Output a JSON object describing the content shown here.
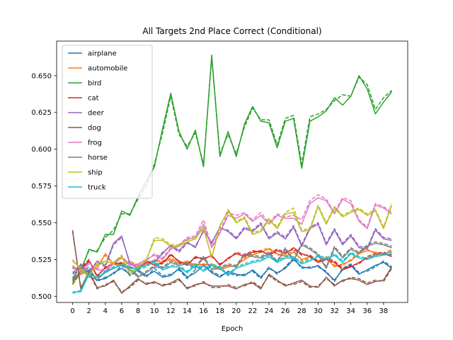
{
  "chart_data": {
    "type": "line",
    "title": "All Targets 2nd Place Correct (Conditional)",
    "xlabel": "Epoch",
    "ylabel": "",
    "xlim": [
      -1.95,
      40.95
    ],
    "ylim": [
      0.4958,
      0.6735
    ],
    "xticks": [
      0,
      2,
      4,
      6,
      8,
      10,
      12,
      14,
      16,
      18,
      20,
      22,
      24,
      26,
      28,
      30,
      32,
      34,
      36,
      38
    ],
    "yticks": [
      0.5,
      0.525,
      0.55,
      0.575,
      0.6,
      0.625,
      0.65
    ],
    "ytick_labels": [
      "0.500",
      "0.525",
      "0.550",
      "0.575",
      "0.600",
      "0.625",
      "0.650"
    ],
    "legend_position": "top-left",
    "line_styles": {
      "solid": "solid",
      "dashed": "dashed"
    },
    "x": [
      0,
      1,
      2,
      3,
      4,
      5,
      6,
      7,
      8,
      9,
      10,
      11,
      12,
      13,
      14,
      15,
      16,
      17,
      18,
      19,
      20,
      21,
      22,
      23,
      24,
      25,
      26,
      27,
      28,
      29,
      30,
      31,
      32,
      33,
      34,
      35,
      36,
      37,
      38,
      39
    ],
    "series": [
      {
        "name": "airplane",
        "color": "#1f77b4",
        "values": [
          0.513,
          0.515,
          0.518,
          0.511,
          0.512,
          0.516,
          0.519,
          0.515,
          0.518,
          0.514,
          0.517,
          0.513,
          0.514,
          0.519,
          0.513,
          0.516,
          0.521,
          0.516,
          0.513,
          0.517,
          0.515,
          0.514,
          0.518,
          0.513,
          0.519,
          0.516,
          0.519,
          0.525,
          0.52,
          0.519,
          0.521,
          0.516,
          0.511,
          0.518,
          0.521,
          0.515,
          0.518,
          0.521,
          0.523,
          0.519
        ],
        "values_2": [
          0.511,
          0.516,
          0.52,
          0.51,
          0.513,
          0.515,
          0.521,
          0.514,
          0.517,
          0.513,
          0.519,
          0.514,
          0.515,
          0.518,
          0.512,
          0.518,
          0.522,
          0.517,
          0.514,
          0.516,
          0.514,
          0.515,
          0.517,
          0.512,
          0.52,
          0.515,
          0.52,
          0.526,
          0.519,
          0.52,
          0.52,
          0.517,
          0.51,
          0.519,
          0.522,
          0.516,
          0.517,
          0.52,
          0.524,
          0.52
        ]
      },
      {
        "name": "automobile",
        "color": "#ff7f0e",
        "values": [
          0.509,
          0.515,
          0.517,
          0.519,
          0.529,
          0.522,
          0.521,
          0.523,
          0.52,
          0.522,
          0.524,
          0.523,
          0.525,
          0.522,
          0.524,
          0.521,
          0.522,
          0.521,
          0.518,
          0.52,
          0.521,
          0.525,
          0.528,
          0.53,
          0.532,
          0.529,
          0.527,
          0.53,
          0.525,
          0.527,
          0.523,
          0.526,
          0.52,
          0.522,
          0.524,
          0.529,
          0.531,
          0.53,
          0.528,
          0.531
        ],
        "values_2": [
          0.508,
          0.516,
          0.516,
          0.52,
          0.528,
          0.521,
          0.522,
          0.524,
          0.521,
          0.521,
          0.525,
          0.524,
          0.526,
          0.523,
          0.523,
          0.522,
          0.521,
          0.522,
          0.519,
          0.521,
          0.52,
          0.526,
          0.529,
          0.531,
          0.533,
          0.528,
          0.528,
          0.531,
          0.524,
          0.526,
          0.524,
          0.527,
          0.521,
          0.521,
          0.525,
          0.53,
          0.532,
          0.529,
          0.529,
          0.532
        ]
      },
      {
        "name": "bird",
        "color": "#2ca02c",
        "values": [
          0.51,
          0.517,
          0.532,
          0.53,
          0.542,
          0.542,
          0.558,
          0.555,
          0.568,
          0.578,
          0.588,
          0.614,
          0.638,
          0.612,
          0.6,
          0.613,
          0.588,
          0.664,
          0.595,
          0.612,
          0.595,
          0.617,
          0.629,
          0.619,
          0.618,
          0.601,
          0.619,
          0.621,
          0.587,
          0.619,
          0.622,
          0.626,
          0.635,
          0.63,
          0.636,
          0.65,
          0.641,
          0.624,
          0.632,
          0.639
        ],
        "values_2": [
          0.508,
          0.518,
          0.531,
          0.531,
          0.54,
          0.545,
          0.556,
          0.556,
          0.566,
          0.575,
          0.59,
          0.611,
          0.636,
          0.61,
          0.602,
          0.611,
          0.59,
          0.662,
          0.597,
          0.61,
          0.597,
          0.615,
          0.628,
          0.62,
          0.62,
          0.603,
          0.621,
          0.623,
          0.59,
          0.622,
          0.624,
          0.627,
          0.633,
          0.637,
          0.636,
          0.649,
          0.644,
          0.627,
          0.635,
          0.64
        ]
      },
      {
        "name": "cat",
        "color": "#d62728",
        "values": [
          0.52,
          0.518,
          0.524,
          0.514,
          0.519,
          0.523,
          0.522,
          0.52,
          0.518,
          0.524,
          0.521,
          0.523,
          0.528,
          0.524,
          0.521,
          0.527,
          0.525,
          0.528,
          0.521,
          0.526,
          0.529,
          0.527,
          0.53,
          0.531,
          0.528,
          0.531,
          0.529,
          0.533,
          0.529,
          0.527,
          0.523,
          0.525,
          0.523,
          0.518,
          0.52,
          0.523,
          0.526,
          0.528,
          0.529,
          0.527
        ],
        "values_2": [
          0.519,
          0.519,
          0.525,
          0.513,
          0.52,
          0.522,
          0.523,
          0.519,
          0.519,
          0.523,
          0.522,
          0.522,
          0.529,
          0.523,
          0.522,
          0.526,
          0.526,
          0.527,
          0.522,
          0.525,
          0.53,
          0.528,
          0.531,
          0.53,
          0.529,
          0.532,
          0.53,
          0.532,
          0.528,
          0.528,
          0.524,
          0.526,
          0.524,
          0.519,
          0.521,
          0.522,
          0.527,
          0.529,
          0.53,
          0.528
        ]
      },
      {
        "name": "deer",
        "color": "#9467bd",
        "values": [
          0.512,
          0.522,
          0.516,
          0.524,
          0.521,
          0.536,
          0.541,
          0.522,
          0.519,
          0.524,
          0.523,
          0.529,
          0.535,
          0.531,
          0.537,
          0.533,
          0.545,
          0.536,
          0.547,
          0.544,
          0.539,
          0.546,
          0.544,
          0.549,
          0.539,
          0.543,
          0.539,
          0.547,
          0.534,
          0.546,
          0.549,
          0.535,
          0.545,
          0.535,
          0.541,
          0.533,
          0.532,
          0.545,
          0.539,
          0.538
        ],
        "values_2": [
          0.511,
          0.521,
          0.517,
          0.523,
          0.52,
          0.535,
          0.54,
          0.523,
          0.52,
          0.523,
          0.524,
          0.53,
          0.534,
          0.53,
          0.536,
          0.534,
          0.544,
          0.537,
          0.546,
          0.545,
          0.54,
          0.547,
          0.545,
          0.55,
          0.54,
          0.544,
          0.54,
          0.548,
          0.535,
          0.547,
          0.55,
          0.536,
          0.546,
          0.536,
          0.542,
          0.534,
          0.533,
          0.546,
          0.54,
          0.539
        ]
      },
      {
        "name": "dog",
        "color": "#8c564b",
        "values": [
          0.545,
          0.505,
          0.517,
          0.506,
          0.507,
          0.511,
          0.502,
          0.507,
          0.512,
          0.508,
          0.51,
          0.507,
          0.509,
          0.512,
          0.505,
          0.508,
          0.509,
          0.507,
          0.507,
          0.507,
          0.505,
          0.508,
          0.509,
          0.505,
          0.515,
          0.511,
          0.507,
          0.509,
          0.511,
          0.507,
          0.506,
          0.513,
          0.507,
          0.511,
          0.512,
          0.511,
          0.508,
          0.51,
          0.511,
          0.52
        ],
        "values_2": [
          0.544,
          0.506,
          0.516,
          0.505,
          0.508,
          0.51,
          0.503,
          0.506,
          0.511,
          0.509,
          0.509,
          0.508,
          0.508,
          0.511,
          0.506,
          0.507,
          0.51,
          0.506,
          0.506,
          0.508,
          0.506,
          0.507,
          0.51,
          0.506,
          0.514,
          0.51,
          0.508,
          0.508,
          0.51,
          0.506,
          0.507,
          0.512,
          0.508,
          0.51,
          0.513,
          0.512,
          0.509,
          0.511,
          0.51,
          0.519
        ]
      },
      {
        "name": "frog",
        "color": "#e377c2",
        "values": [
          0.521,
          0.516,
          0.523,
          0.518,
          0.517,
          0.522,
          0.526,
          0.521,
          0.522,
          0.525,
          0.528,
          0.525,
          0.532,
          0.534,
          0.539,
          0.54,
          0.549,
          0.533,
          0.543,
          0.555,
          0.553,
          0.556,
          0.551,
          0.555,
          0.549,
          0.555,
          0.553,
          0.553,
          0.549,
          0.563,
          0.567,
          0.565,
          0.556,
          0.566,
          0.563,
          0.551,
          0.546,
          0.562,
          0.56,
          0.556
        ],
        "values_2": [
          0.52,
          0.517,
          0.522,
          0.519,
          0.518,
          0.523,
          0.527,
          0.522,
          0.521,
          0.524,
          0.529,
          0.526,
          0.533,
          0.535,
          0.54,
          0.541,
          0.552,
          0.534,
          0.544,
          0.557,
          0.555,
          0.557,
          0.552,
          0.557,
          0.55,
          0.556,
          0.554,
          0.555,
          0.552,
          0.565,
          0.569,
          0.566,
          0.557,
          0.567,
          0.565,
          0.552,
          0.547,
          0.563,
          0.561,
          0.557
        ]
      },
      {
        "name": "horse",
        "color": "#7f7f7f",
        "values": [
          0.516,
          0.521,
          0.514,
          0.511,
          0.517,
          0.519,
          0.521,
          0.518,
          0.513,
          0.516,
          0.52,
          0.519,
          0.523,
          0.521,
          0.522,
          0.519,
          0.526,
          0.518,
          0.519,
          0.521,
          0.52,
          0.528,
          0.527,
          0.526,
          0.529,
          0.523,
          0.532,
          0.524,
          0.535,
          0.532,
          0.528,
          0.519,
          0.533,
          0.526,
          0.532,
          0.529,
          0.534,
          0.536,
          0.535,
          0.533
        ],
        "values_2": [
          0.515,
          0.52,
          0.513,
          0.512,
          0.516,
          0.52,
          0.522,
          0.519,
          0.514,
          0.517,
          0.521,
          0.52,
          0.524,
          0.522,
          0.523,
          0.52,
          0.527,
          0.519,
          0.52,
          0.522,
          0.521,
          0.529,
          0.528,
          0.527,
          0.53,
          0.524,
          0.533,
          0.525,
          0.536,
          0.533,
          0.529,
          0.52,
          0.534,
          0.527,
          0.533,
          0.53,
          0.535,
          0.537,
          0.536,
          0.534
        ]
      },
      {
        "name": "ship",
        "color": "#bcbd22",
        "values": [
          0.525,
          0.518,
          0.513,
          0.522,
          0.524,
          0.522,
          0.527,
          0.515,
          0.519,
          0.525,
          0.538,
          0.538,
          0.534,
          0.534,
          0.537,
          0.539,
          0.547,
          0.526,
          0.548,
          0.558,
          0.55,
          0.553,
          0.542,
          0.544,
          0.552,
          0.546,
          0.556,
          0.557,
          0.544,
          0.545,
          0.561,
          0.549,
          0.56,
          0.554,
          0.557,
          0.559,
          0.555,
          0.558,
          0.546,
          0.562
        ],
        "values_2": [
          0.524,
          0.519,
          0.514,
          0.521,
          0.523,
          0.523,
          0.528,
          0.516,
          0.52,
          0.524,
          0.54,
          0.539,
          0.535,
          0.535,
          0.538,
          0.54,
          0.546,
          0.527,
          0.547,
          0.559,
          0.551,
          0.554,
          0.543,
          0.545,
          0.553,
          0.547,
          0.557,
          0.56,
          0.545,
          0.546,
          0.562,
          0.55,
          0.561,
          0.555,
          0.558,
          0.56,
          0.556,
          0.559,
          0.547,
          0.563
        ]
      },
      {
        "name": "truck",
        "color": "#17becf",
        "values": [
          0.503,
          0.503,
          0.515,
          0.513,
          0.516,
          0.519,
          0.521,
          0.519,
          0.519,
          0.521,
          0.523,
          0.518,
          0.52,
          0.52,
          0.516,
          0.521,
          0.517,
          0.521,
          0.519,
          0.514,
          0.519,
          0.521,
          0.523,
          0.524,
          0.527,
          0.523,
          0.526,
          0.526,
          0.522,
          0.524,
          0.527,
          0.525,
          0.528,
          0.523,
          0.529,
          0.526,
          0.525,
          0.527,
          0.528,
          0.529
        ],
        "values_2": [
          0.502,
          0.504,
          0.516,
          0.512,
          0.517,
          0.52,
          0.522,
          0.52,
          0.518,
          0.52,
          0.524,
          0.519,
          0.521,
          0.521,
          0.517,
          0.522,
          0.518,
          0.522,
          0.52,
          0.515,
          0.52,
          0.522,
          0.524,
          0.525,
          0.528,
          0.524,
          0.527,
          0.527,
          0.523,
          0.525,
          0.528,
          0.526,
          0.529,
          0.524,
          0.53,
          0.527,
          0.526,
          0.528,
          0.529,
          0.53
        ]
      }
    ]
  }
}
